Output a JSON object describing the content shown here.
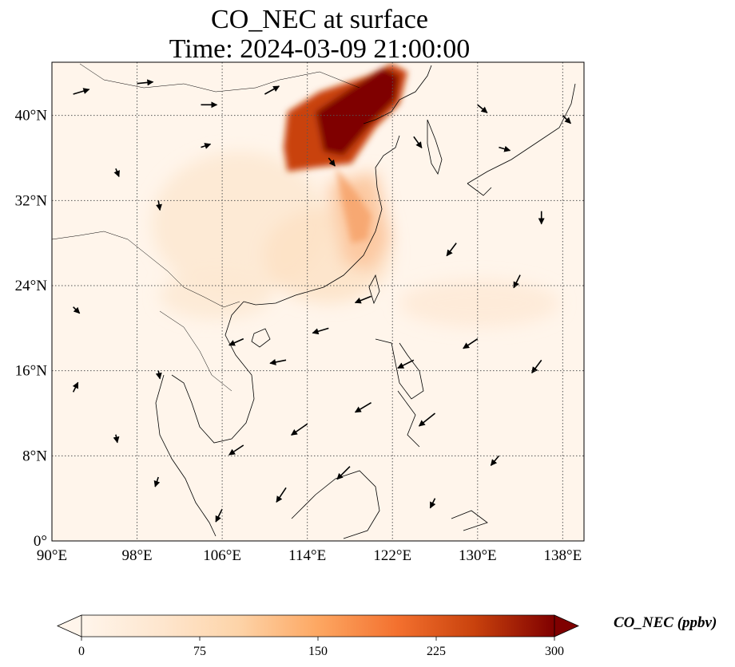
{
  "title_line1": "CO_NEC at surface",
  "title_line2": "Time: 2024-03-09 21:00:00",
  "map": {
    "lon_range": [
      90,
      140
    ],
    "lat_range": [
      0,
      45
    ],
    "gridlines": true,
    "lon_ticks": [
      {
        "value": 90,
        "label": "90°E"
      },
      {
        "value": 98,
        "label": "98°E"
      },
      {
        "value": 106,
        "label": "106°E"
      },
      {
        "value": 114,
        "label": "114°E"
      },
      {
        "value": 122,
        "label": "122°E"
      },
      {
        "value": 130,
        "label": "130°E"
      },
      {
        "value": 138,
        "label": "138°E"
      }
    ],
    "lat_ticks": [
      {
        "value": 0,
        "label": "0°"
      },
      {
        "value": 8,
        "label": "8°N"
      },
      {
        "value": 16,
        "label": "16°N"
      },
      {
        "value": 24,
        "label": "24°N"
      },
      {
        "value": 32,
        "label": "32°N"
      },
      {
        "value": 40,
        "label": "40°N"
      }
    ],
    "background_color": "#fff5eb",
    "pollution_features": [
      {
        "name": "north-china-plume",
        "lon": 118.5,
        "lat": 40.0,
        "level": 300
      },
      {
        "name": "bohai-core",
        "lon": 120.5,
        "lat": 41.5,
        "level": 300
      },
      {
        "name": "east-china-coast",
        "lon": 118.5,
        "lat": 31.0,
        "level": 130
      },
      {
        "name": "yangtze-basin",
        "lon": 108.0,
        "lat": 30.0,
        "level": 55
      },
      {
        "name": "south-china-coast",
        "lon": 113.5,
        "lat": 24.5,
        "level": 45
      }
    ],
    "wind_vectors": [
      {
        "lon": 92,
        "lat": 42,
        "u": 1,
        "v": 0.3
      },
      {
        "lon": 98,
        "lat": 43,
        "u": 1,
        "v": 0.1
      },
      {
        "lon": 104,
        "lat": 41,
        "u": 1,
        "v": 0
      },
      {
        "lon": 110,
        "lat": 42,
        "u": 0.9,
        "v": 0.5
      },
      {
        "lon": 104,
        "lat": 37,
        "u": 0.6,
        "v": 0.2
      },
      {
        "lon": 96,
        "lat": 35,
        "u": 0.2,
        "v": -0.5
      },
      {
        "lon": 100,
        "lat": 32,
        "u": 0.1,
        "v": -0.6
      },
      {
        "lon": 116,
        "lat": 36,
        "u": 0.4,
        "v": -0.5
      },
      {
        "lon": 124,
        "lat": 38,
        "u": 0.5,
        "v": -0.7
      },
      {
        "lon": 132,
        "lat": 37,
        "u": 0.7,
        "v": -0.2
      },
      {
        "lon": 136,
        "lat": 31,
        "u": 0,
        "v": -0.8
      },
      {
        "lon": 128,
        "lat": 28,
        "u": -0.6,
        "v": -0.8
      },
      {
        "lon": 134,
        "lat": 25,
        "u": -0.4,
        "v": -0.8
      },
      {
        "lon": 120,
        "lat": 23,
        "u": -1,
        "v": -0.4
      },
      {
        "lon": 116,
        "lat": 20,
        "u": -1,
        "v": -0.3
      },
      {
        "lon": 112,
        "lat": 17,
        "u": -1,
        "v": -0.2
      },
      {
        "lon": 108,
        "lat": 19,
        "u": -0.9,
        "v": -0.4
      },
      {
        "lon": 124,
        "lat": 17,
        "u": -1,
        "v": -0.5
      },
      {
        "lon": 130,
        "lat": 19,
        "u": -0.9,
        "v": -0.6
      },
      {
        "lon": 136,
        "lat": 17,
        "u": -0.6,
        "v": -0.8
      },
      {
        "lon": 120,
        "lat": 13,
        "u": -1,
        "v": -0.6
      },
      {
        "lon": 126,
        "lat": 12,
        "u": -1,
        "v": -0.8
      },
      {
        "lon": 114,
        "lat": 11,
        "u": -1,
        "v": -0.7
      },
      {
        "lon": 108,
        "lat": 9,
        "u": -0.9,
        "v": -0.6
      },
      {
        "lon": 118,
        "lat": 7,
        "u": -0.8,
        "v": -0.8
      },
      {
        "lon": 112,
        "lat": 5,
        "u": -0.6,
        "v": -0.9
      },
      {
        "lon": 106,
        "lat": 3,
        "u": -0.4,
        "v": -0.8
      },
      {
        "lon": 100,
        "lat": 6,
        "u": -0.2,
        "v": -0.6
      },
      {
        "lon": 96,
        "lat": 10,
        "u": 0.1,
        "v": -0.5
      },
      {
        "lon": 92,
        "lat": 14,
        "u": 0.3,
        "v": 0.6
      },
      {
        "lon": 100,
        "lat": 16,
        "u": 0.1,
        "v": -0.5
      },
      {
        "lon": 92,
        "lat": 22,
        "u": 0.4,
        "v": -0.4
      },
      {
        "lon": 126,
        "lat": 4,
        "u": -0.3,
        "v": -0.6
      },
      {
        "lon": 132,
        "lat": 8,
        "u": -0.5,
        "v": -0.6
      },
      {
        "lon": 130,
        "lat": 41,
        "u": 0.6,
        "v": -0.5
      },
      {
        "lon": 138,
        "lat": 40,
        "u": 0.5,
        "v": -0.5
      }
    ]
  },
  "colorbar": {
    "min": 0,
    "max": 300,
    "ticks": [
      "0",
      "75",
      "150",
      "225",
      "300"
    ],
    "label": "CO_NEC (ppbv)",
    "colors": [
      "#fff5eb",
      "#fdd4a9",
      "#fda762",
      "#f36c2a",
      "#c9420d",
      "#a30a05",
      "#7f0000"
    ]
  }
}
